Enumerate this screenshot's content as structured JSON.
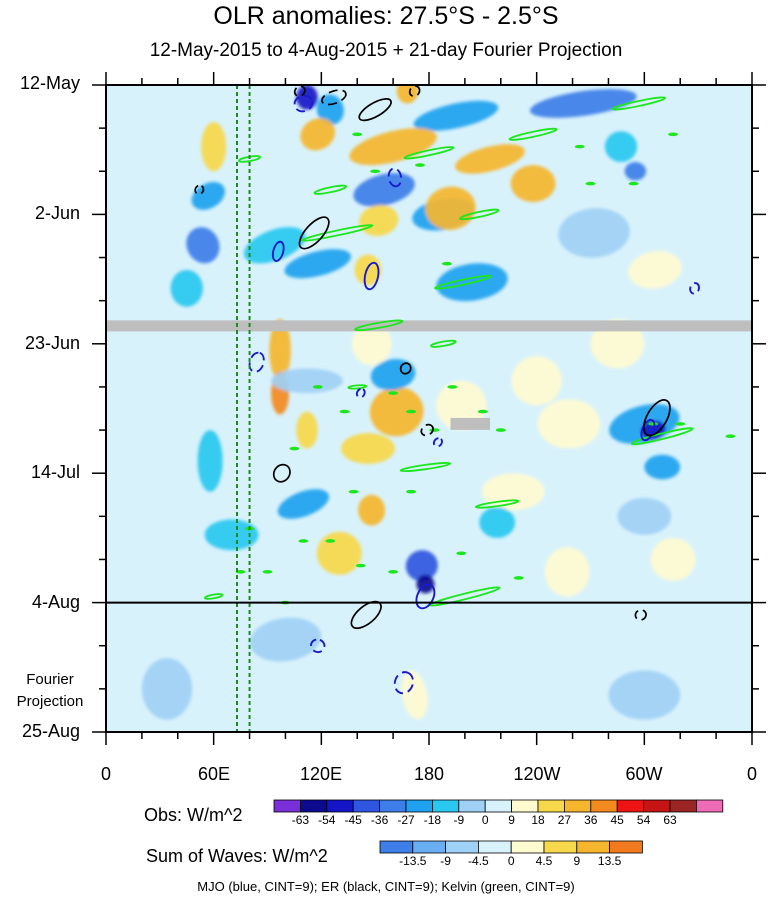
{
  "title": "OLR anomalies: 27.5°S - 2.5°S",
  "subtitle": "12-May-2015 to 4-Aug-2015 + 21-day Fourier Projection",
  "projection_label": [
    "Fourier",
    "Projection"
  ],
  "footer": "MJO (blue, CINT=9); ER (black, CINT=9); Kelvin (green, CINT=9)",
  "colors": {
    "missing": "#bebebe",
    "mjo": "#1a1acc",
    "er": "#000000",
    "kelvin": "#1ee61e",
    "guide": "#1f8a1f"
  },
  "chart_data": {
    "type": "heatmap",
    "x_axis": {
      "labels": [
        "0",
        "60E",
        "120E",
        "180",
        "120W",
        "60W",
        "0"
      ],
      "range": [
        0,
        360
      ],
      "units": "degrees longitude"
    },
    "y_axis": {
      "labels": [
        "12-May",
        "2-Jun",
        "23-Jun",
        "14-Jul",
        "4-Aug",
        "25-Aug"
      ],
      "range_days": [
        0,
        105
      ],
      "inverted": true
    },
    "observation_end": "4-Aug",
    "missing_data_band": {
      "date": "Jun 19-20",
      "longitude_range": [
        0,
        360
      ]
    },
    "guide_lines_longitude": [
      73,
      80
    ],
    "colorbars": [
      {
        "title": "Obs: W/m^2",
        "labels": [
          "-63",
          "-54",
          "-45",
          "-36",
          "-27",
          "-18",
          "-9",
          "0",
          "9",
          "18",
          "27",
          "36",
          "45",
          "54",
          "63"
        ],
        "colors": [
          "#7b2fd8",
          "#0d0a8f",
          "#1515c8",
          "#2f56e0",
          "#3d7ee8",
          "#1ea2ef",
          "#28c8f0",
          "#9fd0f5",
          "#d8f2fc",
          "#fffbd0",
          "#f7d84a",
          "#f5b62e",
          "#f28a1e",
          "#ef1414",
          "#c61414",
          "#9b2424",
          "#ee6bb8"
        ]
      },
      {
        "title": "Sum of Waves: W/m^2",
        "labels": [
          "-13.5",
          "-9",
          "-4.5",
          "0",
          "4.5",
          "9",
          "13.5"
        ],
        "colors": [
          "#3d7ee8",
          "#6aaef2",
          "#9fd0f5",
          "#d8f2fc",
          "#fffbd0",
          "#f7d84a",
          "#f5b62e",
          "#f27a1e"
        ]
      }
    ],
    "blobs": [
      {
        "lon": 112,
        "day": 2,
        "w": 12,
        "h": 4,
        "angle": 0,
        "value": -54
      },
      {
        "lon": 125,
        "day": 4,
        "w": 15,
        "h": 5,
        "angle": -15,
        "value": -27
      },
      {
        "lon": 168,
        "day": 1,
        "w": 12,
        "h": 4,
        "angle": 0,
        "value": 27
      },
      {
        "lon": 195,
        "day": 5,
        "w": 48,
        "h": 4,
        "angle": -12,
        "value": -27
      },
      {
        "lon": 266,
        "day": 3,
        "w": 60,
        "h": 4,
        "angle": -8,
        "value": -36
      },
      {
        "lon": 118,
        "day": 8,
        "w": 20,
        "h": 5,
        "angle": -30,
        "value": 27
      },
      {
        "lon": 160,
        "day": 10,
        "w": 50,
        "h": 5,
        "angle": -14,
        "value": 27
      },
      {
        "lon": 214,
        "day": 12,
        "w": 40,
        "h": 4,
        "angle": -14,
        "value": 27
      },
      {
        "lon": 287,
        "day": 10,
        "w": 18,
        "h": 5,
        "angle": 0,
        "value": -18
      },
      {
        "lon": 295,
        "day": 14,
        "w": 12,
        "h": 3,
        "angle": 0,
        "value": -36
      },
      {
        "lon": 57,
        "day": 18,
        "w": 20,
        "h": 4,
        "angle": -30,
        "value": -27
      },
      {
        "lon": 155,
        "day": 17,
        "w": 35,
        "h": 5,
        "angle": -14,
        "value": -36
      },
      {
        "lon": 188,
        "day": 21,
        "w": 35,
        "h": 5,
        "angle": -10,
        "value": -27
      },
      {
        "lon": 152,
        "day": 22,
        "w": 22,
        "h": 5,
        "angle": -10,
        "value": 18
      },
      {
        "lon": 54,
        "day": 26,
        "w": 18,
        "h": 6,
        "angle": -25,
        "value": -36
      },
      {
        "lon": 94,
        "day": 26,
        "w": 36,
        "h": 5,
        "angle": -20,
        "value": -18
      },
      {
        "lon": 118,
        "day": 29,
        "w": 38,
        "h": 4,
        "angle": -14,
        "value": -27
      },
      {
        "lon": 146,
        "day": 30,
        "w": 15,
        "h": 5,
        "angle": 0,
        "value": 18
      },
      {
        "lon": 204,
        "day": 32,
        "w": 40,
        "h": 6,
        "angle": -8,
        "value": -27
      },
      {
        "lon": 192,
        "day": 20,
        "w": 28,
        "h": 7,
        "angle": -8,
        "value": 27
      },
      {
        "lon": 238,
        "day": 16,
        "w": 25,
        "h": 6,
        "angle": 0,
        "value": 27
      },
      {
        "lon": 272,
        "day": 24,
        "w": 40,
        "h": 8,
        "angle": -5,
        "value": -9
      },
      {
        "lon": 306,
        "day": 30,
        "w": 30,
        "h": 6,
        "angle": -10,
        "value": 9
      },
      {
        "lon": 45,
        "day": 33,
        "w": 18,
        "h": 6,
        "angle": 0,
        "value": -18
      },
      {
        "lon": 97,
        "day": 43,
        "w": 12,
        "h": 10,
        "angle": 0,
        "value": 27
      },
      {
        "lon": 97,
        "day": 50,
        "w": 10,
        "h": 7,
        "angle": 0,
        "value": 36
      },
      {
        "lon": 112,
        "day": 56,
        "w": 12,
        "h": 6,
        "angle": 0,
        "value": 18
      },
      {
        "lon": 162,
        "day": 53,
        "w": 30,
        "h": 8,
        "angle": -10,
        "value": 27
      },
      {
        "lon": 146,
        "day": 59,
        "w": 30,
        "h": 5,
        "angle": 0,
        "value": 18
      },
      {
        "lon": 112,
        "day": 48,
        "w": 40,
        "h": 4,
        "angle": 0,
        "value": -9
      },
      {
        "lon": 160,
        "day": 47,
        "w": 25,
        "h": 5,
        "angle": -10,
        "value": -27
      },
      {
        "lon": 58,
        "day": 61,
        "w": 14,
        "h": 10,
        "angle": 0,
        "value": -18
      },
      {
        "lon": 148,
        "day": 42,
        "w": 22,
        "h": 7,
        "angle": 0,
        "value": 9
      },
      {
        "lon": 240,
        "day": 48,
        "w": 28,
        "h": 8,
        "angle": 0,
        "value": 9
      },
      {
        "lon": 300,
        "day": 55,
        "w": 40,
        "h": 6,
        "angle": -14,
        "value": -27
      },
      {
        "lon": 305,
        "day": 56,
        "w": 14,
        "h": 3,
        "angle": -14,
        "value": -54
      },
      {
        "lon": 310,
        "day": 62,
        "w": 20,
        "h": 4,
        "angle": 0,
        "value": -27
      },
      {
        "lon": 258,
        "day": 55,
        "w": 35,
        "h": 8,
        "angle": 0,
        "value": 9
      },
      {
        "lon": 198,
        "day": 52,
        "w": 28,
        "h": 8,
        "angle": -10,
        "value": 9
      },
      {
        "lon": 110,
        "day": 68,
        "w": 30,
        "h": 4,
        "angle": -20,
        "value": -27
      },
      {
        "lon": 70,
        "day": 73,
        "w": 30,
        "h": 5,
        "angle": 0,
        "value": -18
      },
      {
        "lon": 176,
        "day": 78,
        "w": 18,
        "h": 5,
        "angle": -20,
        "value": -45
      },
      {
        "lon": 178,
        "day": 81,
        "w": 10,
        "h": 3,
        "angle": 0,
        "value": -63
      },
      {
        "lon": 130,
        "day": 76,
        "w": 25,
        "h": 7,
        "angle": 0,
        "value": 18
      },
      {
        "lon": 227,
        "day": 66,
        "w": 35,
        "h": 6,
        "angle": 0,
        "value": 9
      },
      {
        "lon": 257,
        "day": 79,
        "w": 25,
        "h": 8,
        "angle": 0,
        "value": 9
      },
      {
        "lon": 316,
        "day": 77,
        "w": 25,
        "h": 7,
        "angle": 0,
        "value": 9
      },
      {
        "lon": 218,
        "day": 71,
        "w": 20,
        "h": 5,
        "angle": 0,
        "value": -18
      },
      {
        "lon": 148,
        "day": 69,
        "w": 15,
        "h": 5,
        "angle": 0,
        "value": 27
      },
      {
        "lon": 300,
        "day": 70,
        "w": 30,
        "h": 6,
        "angle": 0,
        "value": -9
      },
      {
        "lon": 60,
        "day": 10,
        "w": 14,
        "h": 8,
        "angle": 0,
        "value": 18
      },
      {
        "lon": 285,
        "day": 42,
        "w": 30,
        "h": 8,
        "angle": 0,
        "value": 9
      },
      {
        "lon": 100,
        "day": 90,
        "w": 40,
        "h": 7,
        "angle": -8,
        "value": -4.5
      },
      {
        "lon": 240,
        "day": 91,
        "w": 50,
        "h": 6,
        "angle": -8,
        "value": 4.5
      },
      {
        "lon": 172,
        "day": 99,
        "w": 14,
        "h": 8,
        "angle": -10,
        "value": 9
      },
      {
        "lon": 34,
        "day": 98,
        "w": 28,
        "h": 10,
        "angle": 0,
        "value": -4.5
      },
      {
        "lon": 300,
        "day": 99,
        "w": 40,
        "h": 8,
        "angle": 0,
        "value": -4.5
      },
      {
        "lon": 145,
        "day": 88,
        "w": 20,
        "h": 5,
        "angle": 0,
        "value": 4.5
      },
      {
        "lon": 200,
        "day": 96,
        "w": 30,
        "h": 6,
        "angle": -10,
        "value": 4.5
      }
    ],
    "mjo_ellipses": [
      {
        "lon": 110,
        "day": 3,
        "w": 10,
        "h": 2.5,
        "angle": -18,
        "dashed": true
      },
      {
        "lon": 161,
        "day": 15,
        "w": 10,
        "h": 2,
        "angle": 80,
        "dashed": true
      },
      {
        "lon": 96,
        "day": 27,
        "w": 11,
        "h": 1.6,
        "angle": -75,
        "dashed": false
      },
      {
        "lon": 148,
        "day": 31,
        "w": 15,
        "h": 2.1,
        "angle": -78,
        "dashed": false
      },
      {
        "lon": 328,
        "day": 33,
        "w": 6,
        "h": 1.4,
        "angle": -70,
        "dashed": true
      },
      {
        "lon": 84,
        "day": 45,
        "w": 11,
        "h": 2.2,
        "angle": -72,
        "dashed": true
      },
      {
        "lon": 142,
        "day": 50,
        "w": 5,
        "h": 1.2,
        "angle": -60,
        "dashed": true
      },
      {
        "lon": 185,
        "day": 58,
        "w": 5,
        "h": 1.2,
        "angle": -50,
        "dashed": true
      },
      {
        "lon": 302,
        "day": 56,
        "w": 12,
        "h": 1.8,
        "angle": -68,
        "dashed": false
      },
      {
        "lon": 178,
        "day": 83,
        "w": 14,
        "h": 2.6,
        "angle": -65,
        "dashed": false
      },
      {
        "lon": 118,
        "day": 91,
        "w": 7,
        "h": 2.2,
        "angle": -70,
        "dashed": true
      },
      {
        "lon": 166,
        "day": 97,
        "w": 12,
        "h": 2.9,
        "angle": -70,
        "dashed": true
      }
    ],
    "er_ellipses": [
      {
        "lon": 127,
        "day": 2,
        "w": 14,
        "h": 2,
        "angle": -20,
        "dashed": true
      },
      {
        "lon": 150,
        "day": 4,
        "w": 20,
        "h": 2.2,
        "angle": -30,
        "dashed": false
      },
      {
        "lon": 108,
        "day": 1,
        "w": 6,
        "h": 1.5,
        "angle": -40,
        "dashed": true
      },
      {
        "lon": 172,
        "day": 1,
        "w": 6,
        "h": 1.5,
        "angle": -50,
        "dashed": true
      },
      {
        "lon": 52,
        "day": 17,
        "w": 5,
        "h": 1.3,
        "angle": -60,
        "dashed": true
      },
      {
        "lon": 116,
        "day": 24,
        "w": 22,
        "h": 2.8,
        "angle": -48,
        "dashed": false
      },
      {
        "lon": 167,
        "day": 46,
        "w": 6,
        "h": 1.6,
        "angle": -60,
        "dashed": false
      },
      {
        "lon": 179,
        "day": 56,
        "w": 7,
        "h": 1.6,
        "angle": -35,
        "dashed": true
      },
      {
        "lon": 98,
        "day": 63,
        "w": 10,
        "h": 2.5,
        "angle": -55,
        "dashed": false
      },
      {
        "lon": 307,
        "day": 54,
        "w": 22,
        "h": 3.2,
        "angle": -60,
        "dashed": false
      },
      {
        "lon": 145,
        "day": 86,
        "w": 20,
        "h": 2.8,
        "angle": -40,
        "dashed": false
      },
      {
        "lon": 298,
        "day": 86,
        "w": 6,
        "h": 1.6,
        "angle": -20,
        "dashed": true
      }
    ],
    "kelvin_ellipses": [
      {
        "lon": 297,
        "day": 3,
        "w": 30,
        "h": 0.8,
        "angle": -12
      },
      {
        "lon": 238,
        "day": 8,
        "w": 27,
        "h": 0.8,
        "angle": -12
      },
      {
        "lon": 180,
        "day": 11,
        "w": 28,
        "h": 0.8,
        "angle": -12
      },
      {
        "lon": 80,
        "day": 12,
        "w": 12,
        "h": 0.7,
        "angle": -10
      },
      {
        "lon": 125,
        "day": 17,
        "w": 18,
        "h": 0.8,
        "angle": -12
      },
      {
        "lon": 208,
        "day": 21,
        "w": 22,
        "h": 0.8,
        "angle": -12
      },
      {
        "lon": 129,
        "day": 24,
        "w": 40,
        "h": 0.8,
        "angle": -12
      },
      {
        "lon": 199,
        "day": 32,
        "w": 32,
        "h": 0.8,
        "angle": -12
      },
      {
        "lon": 152,
        "day": 39,
        "w": 27,
        "h": 0.8,
        "angle": -10
      },
      {
        "lon": 188,
        "day": 42,
        "w": 14,
        "h": 0.7,
        "angle": -10
      },
      {
        "lon": 140,
        "day": 49,
        "w": 10,
        "h": 0.5,
        "angle": -5
      },
      {
        "lon": 310,
        "day": 57,
        "w": 35,
        "h": 0.9,
        "angle": -14
      },
      {
        "lon": 178,
        "day": 62,
        "w": 28,
        "h": 0.7,
        "angle": -8
      },
      {
        "lon": 218,
        "day": 68,
        "w": 24,
        "h": 0.7,
        "angle": -8
      },
      {
        "lon": 200,
        "day": 83,
        "w": 40,
        "h": 0.9,
        "angle": -14
      },
      {
        "lon": 60,
        "day": 83,
        "w": 10,
        "h": 0.6,
        "angle": -10
      }
    ],
    "kelvin_dots": [
      {
        "lon": 140,
        "day": 8
      },
      {
        "lon": 150,
        "day": 14
      },
      {
        "lon": 175,
        "day": 13
      },
      {
        "lon": 190,
        "day": 29
      },
      {
        "lon": 118,
        "day": 49
      },
      {
        "lon": 133,
        "day": 53
      },
      {
        "lon": 160,
        "day": 50
      },
      {
        "lon": 170,
        "day": 53
      },
      {
        "lon": 193,
        "day": 49
      },
      {
        "lon": 210,
        "day": 53
      },
      {
        "lon": 183,
        "day": 56
      },
      {
        "lon": 138,
        "day": 66
      },
      {
        "lon": 170,
        "day": 66
      },
      {
        "lon": 110,
        "day": 74
      },
      {
        "lon": 125,
        "day": 74
      },
      {
        "lon": 142,
        "day": 78
      },
      {
        "lon": 160,
        "day": 79
      },
      {
        "lon": 90,
        "day": 79
      },
      {
        "lon": 75,
        "day": 79
      },
      {
        "lon": 80,
        "day": 72
      },
      {
        "lon": 100,
        "day": 84
      },
      {
        "lon": 264,
        "day": 10
      },
      {
        "lon": 270,
        "day": 16
      },
      {
        "lon": 294,
        "day": 16
      },
      {
        "lon": 316,
        "day": 8
      },
      {
        "lon": 320,
        "day": 55
      },
      {
        "lon": 348,
        "day": 57
      },
      {
        "lon": 305,
        "day": 55
      },
      {
        "lon": 220,
        "day": 56
      },
      {
        "lon": 105,
        "day": 59
      },
      {
        "lon": 198,
        "day": 76
      },
      {
        "lon": 230,
        "day": 80
      }
    ],
    "missing_patch": {
      "lon_range": [
        192,
        214
      ],
      "day": 55
    }
  }
}
